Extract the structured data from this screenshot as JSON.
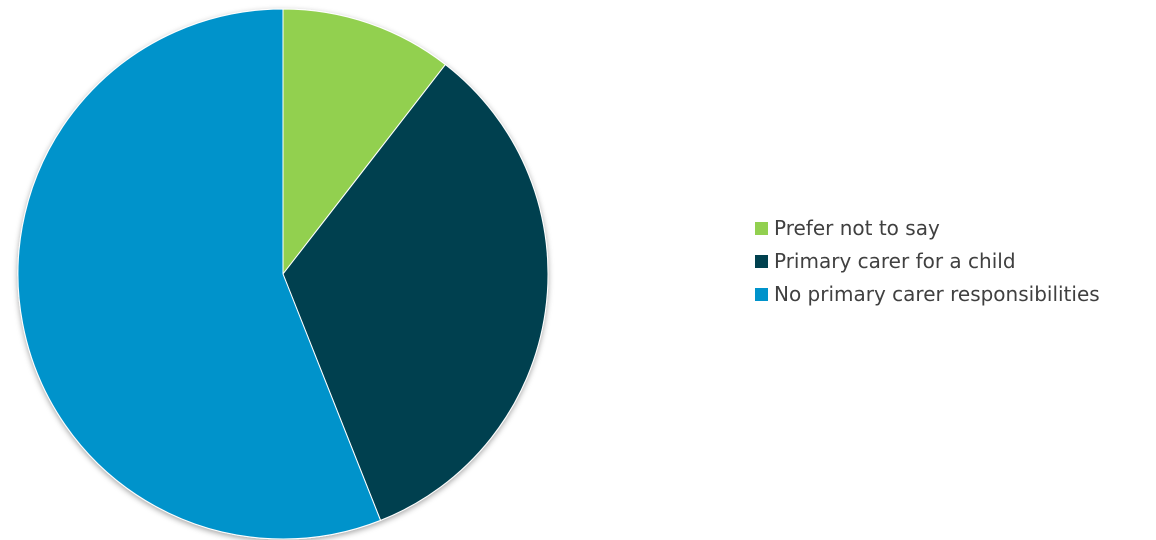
{
  "chart_data": {
    "type": "pie",
    "title": "",
    "start_angle_deg": 0,
    "direction": "clockwise",
    "legend_position": "right",
    "slices": [
      {
        "label": "Prefer not to say",
        "value": 10.5,
        "color": "#92D050"
      },
      {
        "label": "Primary carer for a child",
        "value": 33.5,
        "color": "#00414F"
      },
      {
        "label": "No primary carer responsibilities",
        "value": 56.0,
        "color": "#0093CB"
      }
    ]
  }
}
